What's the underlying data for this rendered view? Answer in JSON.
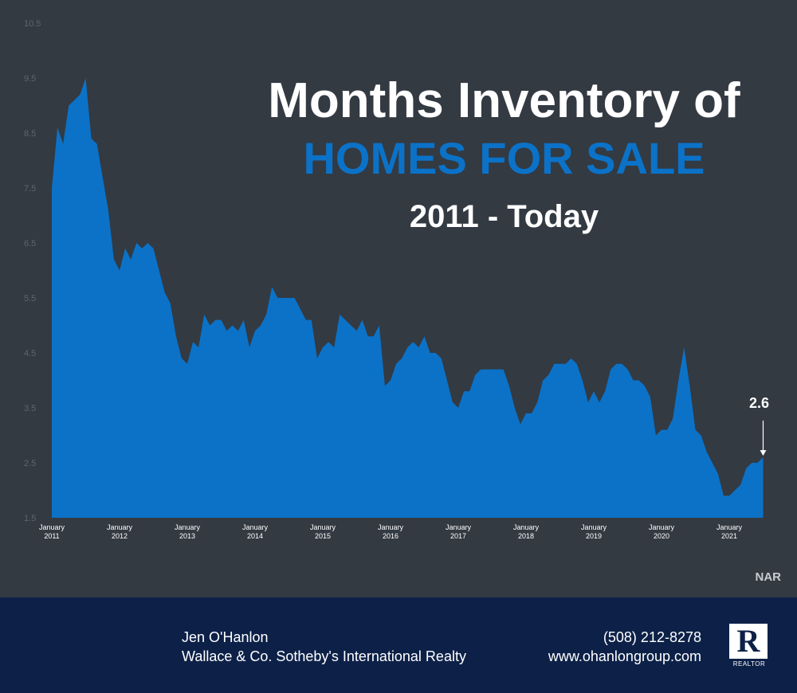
{
  "title": {
    "line1": "Months Inventory of",
    "line2": "HOMES FOR SALE",
    "line3": "2011 - Today"
  },
  "colors": {
    "background": "#333a42",
    "area_fill": "#0b72c8",
    "footer": "#0d2148",
    "title_accent": "#0b72c8"
  },
  "source": "NAR",
  "footer": {
    "agent_name": "Jen O'Hanlon",
    "agency": "Wallace & Co. Sotheby's International Realty",
    "phone": "(508) 212-8278",
    "website": "www.ohanlongroup.com",
    "logo_letter": "R",
    "logo_text": "REALTOR"
  },
  "chart_data": {
    "type": "area",
    "ylim": [
      1.5,
      10.5
    ],
    "yticks": [
      "10.5",
      "9.5",
      "8.5",
      "7.5",
      "6.5",
      "5.5",
      "4.5",
      "3.5",
      "2.5",
      "1.5"
    ],
    "xtick_labels": [
      [
        "January",
        "2011"
      ],
      [
        "January",
        "2012"
      ],
      [
        "January",
        "2013"
      ],
      [
        "January",
        "2014"
      ],
      [
        "January",
        "2015"
      ],
      [
        "January",
        "2016"
      ],
      [
        "January",
        "2017"
      ],
      [
        "January",
        "2018"
      ],
      [
        "January",
        "2019"
      ],
      [
        "January",
        "2020"
      ],
      [
        "January",
        "2021"
      ]
    ],
    "x_start": "2011-01",
    "grid": false,
    "annotation": {
      "label": "2.6",
      "value": 2.6,
      "position": "last point"
    },
    "values": [
      7.5,
      8.6,
      8.3,
      9.0,
      9.1,
      9.2,
      9.5,
      8.4,
      8.3,
      7.7,
      7.1,
      6.2,
      6.0,
      6.4,
      6.2,
      6.5,
      6.4,
      6.5,
      6.4,
      6.0,
      5.6,
      5.4,
      4.8,
      4.4,
      4.3,
      4.7,
      4.6,
      5.2,
      5.0,
      5.1,
      5.1,
      4.9,
      5.0,
      4.9,
      5.1,
      4.6,
      4.9,
      5.0,
      5.2,
      5.7,
      5.5,
      5.5,
      5.5,
      5.5,
      5.3,
      5.1,
      5.1,
      4.4,
      4.6,
      4.7,
      4.6,
      5.2,
      5.1,
      5.0,
      4.9,
      5.1,
      4.8,
      4.8,
      5.0,
      3.9,
      4.0,
      4.3,
      4.4,
      4.6,
      4.7,
      4.6,
      4.8,
      4.5,
      4.5,
      4.4,
      4.0,
      3.6,
      3.5,
      3.8,
      3.8,
      4.1,
      4.2,
      4.2,
      4.2,
      4.2,
      4.2,
      3.9,
      3.5,
      3.2,
      3.4,
      3.4,
      3.6,
      4.0,
      4.1,
      4.3,
      4.3,
      4.3,
      4.4,
      4.3,
      4.0,
      3.6,
      3.8,
      3.6,
      3.8,
      4.2,
      4.3,
      4.3,
      4.2,
      4.0,
      4.0,
      3.9,
      3.7,
      3.0,
      3.1,
      3.1,
      3.3,
      4.0,
      4.6,
      3.9,
      3.1,
      3.0,
      2.7,
      2.5,
      2.3,
      1.9,
      1.9,
      2.0,
      2.1,
      2.4,
      2.5,
      2.5,
      2.6
    ]
  }
}
